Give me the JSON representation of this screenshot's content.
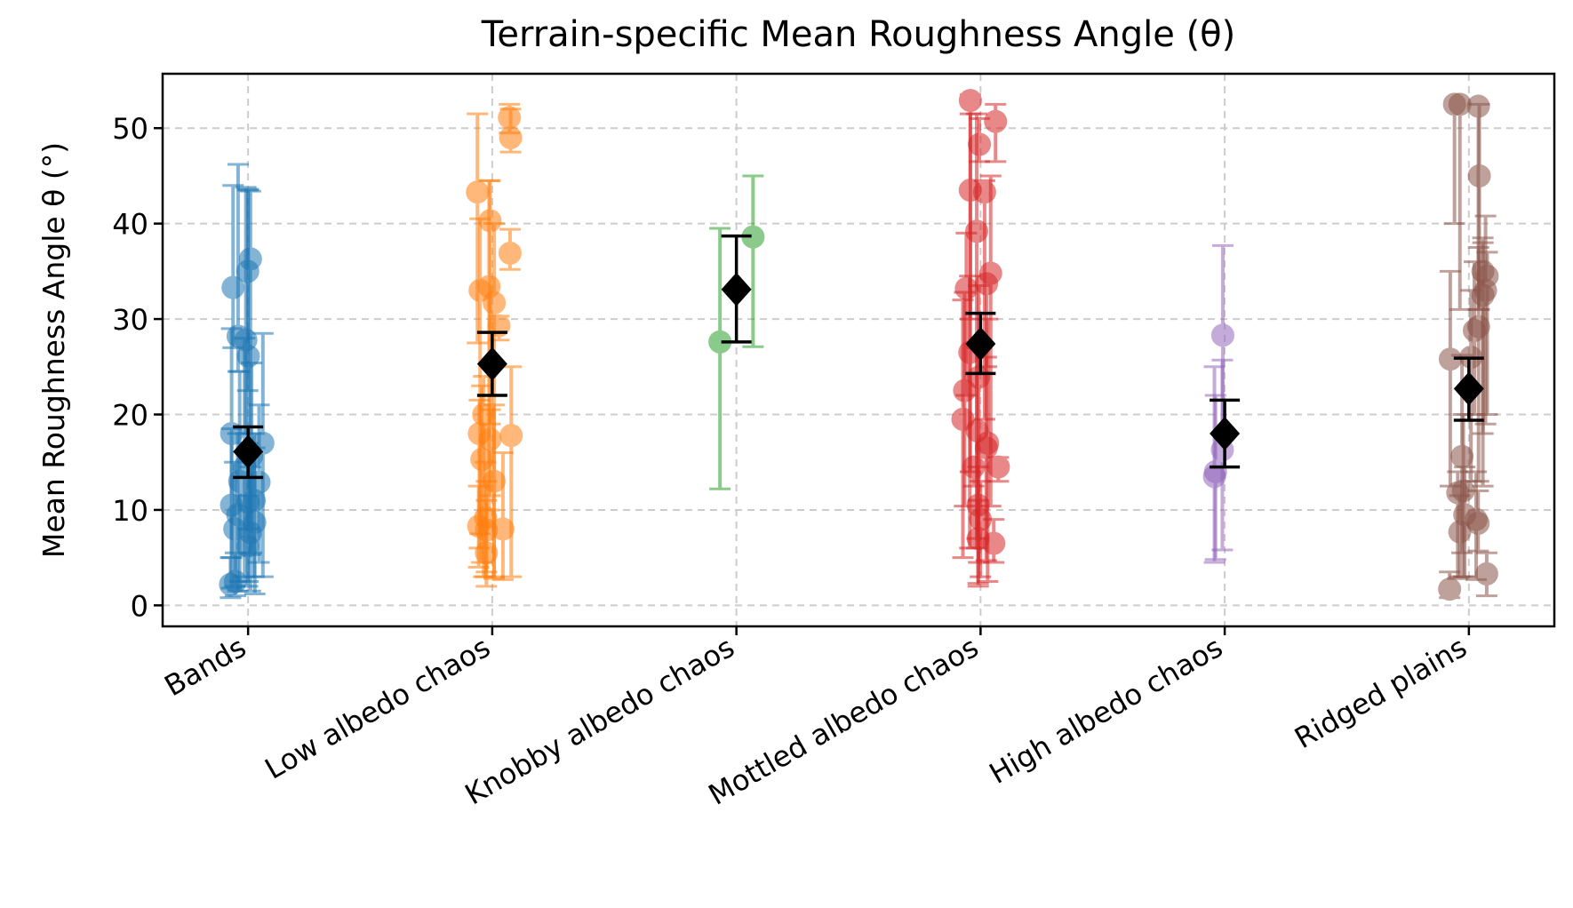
{
  "chart_data": {
    "type": "scatter",
    "title": "Terrain-specific Mean Roughness Angle (θ)",
    "xlabel": "",
    "ylabel": "Mean Roughness Angle θ (°)",
    "ylim": [
      -2.2,
      55.7
    ],
    "yticks": [
      0,
      10,
      20,
      30,
      40,
      50
    ],
    "grid": true,
    "categories": [
      "Bands",
      "Low albedo chaos",
      "Knobby albedo chaos",
      "Mottled albedo chaos",
      "High albedo chaos",
      "Ridged plains"
    ],
    "colors": [
      "#1f77b4",
      "#ff7f0e",
      "#2ca02c",
      "#d62728",
      "#9467bd",
      "#8c564b"
    ],
    "mean_marker_color": "#000000",
    "groups": [
      {
        "mean": 16.1,
        "mean_err": [
          13.4,
          18.7
        ],
        "points": [
          [
            35.0,
            22.5,
            43.5
          ],
          [
            36.3,
            5.3,
            43.4
          ],
          [
            33.3,
            27.0,
            44.0
          ],
          [
            28.2,
            24.5,
            46.2
          ],
          [
            27.8,
            18.0,
            43.8
          ],
          [
            26.1,
            8.0,
            43.6
          ],
          [
            18.0,
            5.0,
            29.0
          ],
          [
            17.0,
            3.0,
            28.5
          ],
          [
            15.6,
            5.5,
            25.4
          ],
          [
            14.5,
            3.0,
            28.0
          ],
          [
            13.0,
            2.5,
            24.5
          ],
          [
            12.9,
            4.5,
            21.0
          ],
          [
            11.0,
            3.0,
            18.0
          ],
          [
            10.5,
            1.8,
            18.5
          ],
          [
            10.8,
            2.5,
            17.0
          ],
          [
            9.5,
            1.5,
            18.0
          ],
          [
            8.7,
            1.2,
            16.5
          ],
          [
            8.0,
            2.0,
            15.0
          ],
          [
            7.6,
            1.5,
            14.5
          ],
          [
            6.2,
            2.0,
            11.5
          ],
          [
            2.5,
            1.0,
            5.5
          ],
          [
            2.2,
            0.8,
            5.0
          ]
        ]
      },
      {
        "mean": 25.3,
        "mean_err": [
          22.0,
          28.6
        ],
        "points": [
          [
            51.1,
            49.5,
            52.5
          ],
          [
            49.0,
            47.5,
            52.0
          ],
          [
            43.3,
            27.5,
            51.5
          ],
          [
            40.3,
            19.0,
            44.5
          ],
          [
            36.9,
            35.2,
            39.4
          ],
          [
            33.0,
            7.5,
            40.5
          ],
          [
            33.4,
            10.0,
            44.5
          ],
          [
            31.7,
            3.0,
            40.0
          ],
          [
            29.3,
            27.8,
            30.3
          ],
          [
            20.0,
            3.0,
            24.0
          ],
          [
            18.0,
            6.0,
            21.5
          ],
          [
            17.8,
            3.0,
            25.0
          ],
          [
            17.4,
            11.5,
            20.5
          ],
          [
            15.3,
            4.5,
            23.0
          ],
          [
            13.0,
            2.8,
            21.0
          ],
          [
            9.2,
            3.0,
            15.0
          ],
          [
            8.3,
            4.0,
            12.5
          ],
          [
            8.0,
            2.7,
            16.0
          ],
          [
            7.9,
            3.5,
            13.0
          ],
          [
            5.5,
            2.0,
            11.0
          ]
        ]
      },
      {
        "mean": 33.1,
        "mean_err": [
          27.6,
          38.7
        ],
        "points": [
          [
            27.6,
            12.2,
            39.5
          ],
          [
            38.6,
            27.1,
            45.0
          ]
        ]
      },
      {
        "mean": 27.4,
        "mean_err": [
          24.3,
          30.6
        ],
        "points": [
          [
            52.9,
            30.0,
            53.5
          ],
          [
            50.7,
            46.5,
            52.5
          ],
          [
            48.3,
            46.5,
            51.0
          ],
          [
            43.5,
            14.0,
            51.5
          ],
          [
            43.3,
            19.5,
            44.5
          ],
          [
            39.2,
            6.0,
            51.5
          ],
          [
            34.8,
            10.4,
            45.0
          ],
          [
            33.7,
            25.0,
            34.0
          ],
          [
            33.2,
            22.0,
            39.0
          ],
          [
            26.5,
            6.0,
            34.5
          ],
          [
            23.9,
            4.5,
            33.5
          ],
          [
            22.5,
            10.4,
            32.8
          ],
          [
            19.5,
            5.0,
            32.0
          ],
          [
            18.3,
            7.0,
            27.0
          ],
          [
            17.0,
            2.5,
            30.0
          ],
          [
            16.5,
            4.7,
            26.0
          ],
          [
            14.5,
            13.0,
            15.5
          ],
          [
            14.5,
            12.5,
            15.0
          ],
          [
            10.5,
            2.3,
            14.5
          ],
          [
            9.0,
            3.0,
            13.0
          ],
          [
            7.0,
            2.0,
            11.0
          ],
          [
            6.5,
            4.5,
            9.0
          ]
        ]
      },
      {
        "mean": 18.0,
        "mean_err": [
          14.5,
          21.5
        ],
        "points": [
          [
            28.3,
            18.0,
            37.7
          ],
          [
            16.3,
            5.8,
            25.7
          ],
          [
            14.0,
            4.8,
            22.0
          ],
          [
            13.5,
            4.5,
            25.0
          ]
        ]
      },
      {
        "mean": 22.7,
        "mean_err": [
          19.4,
          25.9
        ],
        "points": [
          [
            52.3,
            31.0,
            52.5
          ],
          [
            52.5,
            40.0,
            52.7
          ],
          [
            52.5,
            31.0,
            52.7
          ],
          [
            45.0,
            31.0,
            52.5
          ],
          [
            35.0,
            12.5,
            38.5
          ],
          [
            34.5,
            20.0,
            37.0
          ],
          [
            33.0,
            19.0,
            40.8
          ],
          [
            32.5,
            18.0,
            38.0
          ],
          [
            29.2,
            13.0,
            37.5
          ],
          [
            28.8,
            20.0,
            36.0
          ],
          [
            26.0,
            13.0,
            33.0
          ],
          [
            25.8,
            12.5,
            35.0
          ],
          [
            15.6,
            5.5,
            26.2
          ],
          [
            12.0,
            3.0,
            20.0
          ],
          [
            11.8,
            2.8,
            14.0
          ],
          [
            9.5,
            3.0,
            14.5
          ],
          [
            9.0,
            2.7,
            14.0
          ],
          [
            8.6,
            5.7,
            12.0
          ],
          [
            7.7,
            3.0,
            11.5
          ],
          [
            3.3,
            1.0,
            5.5
          ],
          [
            1.7,
            0.8,
            3.5
          ]
        ]
      }
    ]
  }
}
